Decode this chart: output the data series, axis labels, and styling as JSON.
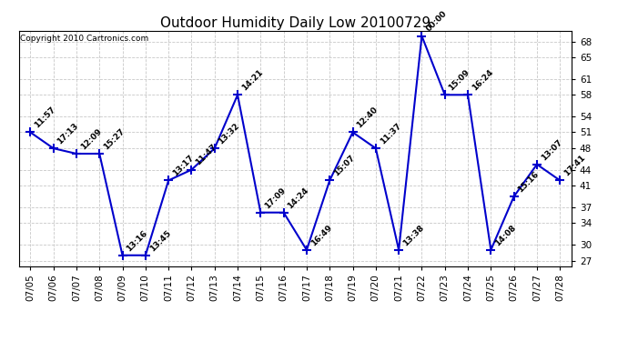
{
  "title": "Outdoor Humidity Daily Low 20100729",
  "copyright": "Copyright 2010 Cartronics.com",
  "line_color": "#0000cc",
  "bg_color": "#ffffff",
  "grid_color": "#c8c8c8",
  "points": [
    {
      "date": "07/05",
      "value": 51,
      "time": "11:57"
    },
    {
      "date": "07/06",
      "value": 48,
      "time": "17:13"
    },
    {
      "date": "07/07",
      "value": 47,
      "time": "12:09"
    },
    {
      "date": "07/08",
      "value": 47,
      "time": "15:27"
    },
    {
      "date": "07/09",
      "value": 28,
      "time": "13:16"
    },
    {
      "date": "07/10",
      "value": 28,
      "time": "13:45"
    },
    {
      "date": "07/11",
      "value": 42,
      "time": "13:17"
    },
    {
      "date": "07/12",
      "value": 44,
      "time": "11:47"
    },
    {
      "date": "07/13",
      "value": 48,
      "time": "13:32"
    },
    {
      "date": "07/14",
      "value": 58,
      "time": "14:21"
    },
    {
      "date": "07/15",
      "value": 36,
      "time": "17:09"
    },
    {
      "date": "07/16",
      "value": 36,
      "time": "14:24"
    },
    {
      "date": "07/17",
      "value": 29,
      "time": "16:49"
    },
    {
      "date": "07/18",
      "value": 42,
      "time": "15:07"
    },
    {
      "date": "07/19",
      "value": 51,
      "time": "12:40"
    },
    {
      "date": "07/20",
      "value": 48,
      "time": "11:37"
    },
    {
      "date": "07/21",
      "value": 29,
      "time": "13:38"
    },
    {
      "date": "07/22",
      "value": 69,
      "time": "00:00"
    },
    {
      "date": "07/23",
      "value": 58,
      "time": "15:09"
    },
    {
      "date": "07/24",
      "value": 58,
      "time": "16:24"
    },
    {
      "date": "07/25",
      "value": 29,
      "time": "14:08"
    },
    {
      "date": "07/26",
      "value": 39,
      "time": "15:16"
    },
    {
      "date": "07/27",
      "value": 45,
      "time": "13:07"
    },
    {
      "date": "07/28",
      "value": 42,
      "time": "17:41"
    }
  ],
  "yticks": [
    27,
    30,
    34,
    37,
    41,
    44,
    48,
    51,
    54,
    58,
    61,
    65,
    68
  ],
  "ylim": [
    26,
    70
  ],
  "linewidth": 1.5,
  "label_fontsize": 7,
  "tick_fontsize": 7.5,
  "title_fontsize": 11,
  "copyright_fontsize": 6.5,
  "annotation_fontsize": 6.5
}
